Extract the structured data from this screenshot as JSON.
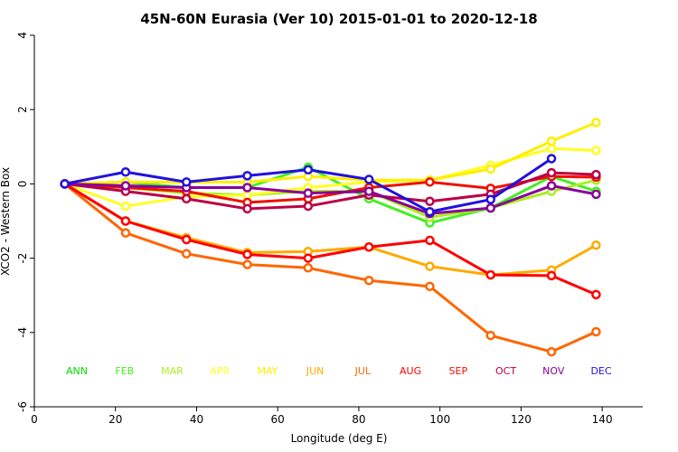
{
  "chart_data": {
    "type": "line",
    "title": "45N-60N Eurasia (Ver 10)   2015-01-01 to 2020-12-18",
    "xlabel": "Longitude (deg E)",
    "ylabel": "XCO2 - Western Box",
    "xlim": [
      0,
      150
    ],
    "ylim": [
      -6,
      4
    ],
    "xticks": [
      0,
      20,
      40,
      60,
      80,
      100,
      120,
      140
    ],
    "yticks": [
      -6,
      -4,
      -2,
      0,
      2,
      4
    ],
    "grid": false,
    "legend_placement": "bottom",
    "x": [
      7.5,
      22.5,
      37.5,
      52.5,
      67.5,
      82.5,
      97.5,
      112.5,
      127.5,
      138.5
    ],
    "series": [
      {
        "name": "ANN",
        "color": "#00dd00",
        "values": [
          0,
          null,
          null,
          null,
          null,
          null,
          null,
          null,
          null,
          null
        ]
      },
      {
        "name": "FEB",
        "color": "#44ee22",
        "values": [
          0,
          0.05,
          -0.1,
          -0.1,
          0.45,
          -0.4,
          -1.05,
          -0.65,
          0.2,
          -0.2
        ]
      },
      {
        "name": "MAR",
        "color": "#aaee22",
        "values": [
          0,
          -0.1,
          -0.25,
          -0.3,
          -0.2,
          -0.2,
          -0.9,
          -0.65,
          -0.2,
          0.1
        ]
      },
      {
        "name": "APR",
        "color": "#ffff22",
        "values": [
          0,
          -0.6,
          -0.35,
          -0.3,
          -0.1,
          0.05,
          0.1,
          0.5,
          0.95,
          0.9
        ]
      },
      {
        "name": "MAY",
        "color": "#ffee00",
        "values": [
          0,
          0.05,
          0.05,
          0.05,
          0.2,
          0.1,
          0.1,
          0.4,
          1.15,
          1.65
        ]
      },
      {
        "name": "JUN",
        "color": "#ffaa00",
        "values": [
          0,
          -1.0,
          -1.45,
          -1.85,
          -1.82,
          -1.7,
          -2.22,
          -2.45,
          -2.32,
          -1.65
        ]
      },
      {
        "name": "JUL",
        "color": "#ff6600",
        "values": [
          0,
          -1.32,
          -1.88,
          -2.17,
          -2.26,
          -2.6,
          -2.76,
          -4.08,
          -4.52,
          -3.98
        ]
      },
      {
        "name": "AUG",
        "color": "#ff0000",
        "values": [
          0,
          -1.0,
          -1.5,
          -1.9,
          -2.0,
          -1.7,
          -1.52,
          -2.45,
          -2.47,
          -2.98
        ]
      },
      {
        "name": "SEP",
        "color": "#ee1100",
        "values": [
          0,
          -0.1,
          -0.2,
          -0.5,
          -0.4,
          -0.1,
          0.05,
          -0.12,
          0.2,
          0.18
        ]
      },
      {
        "name": "OCT",
        "color": "#bb0044",
        "values": [
          0,
          -0.2,
          -0.4,
          -0.67,
          -0.6,
          -0.3,
          -0.47,
          -0.28,
          0.3,
          0.25
        ]
      },
      {
        "name": "NOV",
        "color": "#880099",
        "values": [
          0,
          -0.05,
          -0.1,
          -0.1,
          -0.25,
          -0.2,
          -0.8,
          -0.65,
          -0.05,
          -0.28
        ]
      },
      {
        "name": "DEC",
        "color": "#2211dd",
        "values": [
          0,
          0.32,
          0.05,
          0.22,
          0.38,
          0.12,
          -0.75,
          -0.42,
          0.68,
          null
        ]
      }
    ]
  }
}
